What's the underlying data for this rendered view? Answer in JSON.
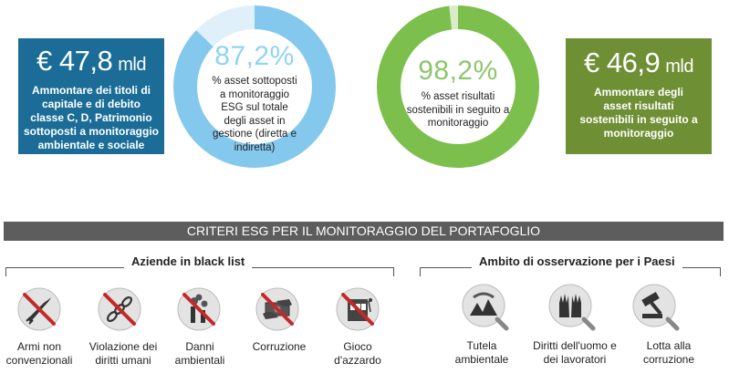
{
  "left_box": {
    "amount": "€ 47,8",
    "unit": "mld",
    "description": "Ammontare dei titoli di capitale e di debito classe C, D, Patrimonio sottoposti a monitoraggio ambientale e sociale",
    "color": "#1b6d97"
  },
  "left_donut": {
    "percentage": "87,2%",
    "value": 87.2,
    "text": "% asset sottoposti a monitoraggio ESG sul totale degli asset in gestione (diretta e indiretta)",
    "main_color": "#85c8ee",
    "rest_color": "#dff0fa"
  },
  "right_donut": {
    "percentage": "98,2%",
    "value": 98.2,
    "text": "% asset risultati sostenibili in seguito a monitoraggio",
    "main_color": "#7cbf4d",
    "rest_color": "#d9ecc7"
  },
  "right_box": {
    "amount": "€ 46,9",
    "unit": "mld",
    "description": "Ammontare degli asset risultati sostenibili in seguito a monitoraggio",
    "color": "#6f8f35"
  },
  "banner": {
    "title": "CRITERI ESG PER IL MONITORAGGIO DEL PORTAFOGLIO"
  },
  "blacklist": {
    "title": "Aziende in black list",
    "items": [
      {
        "label": "Armi non convenzionali",
        "icon": "weapon-icon"
      },
      {
        "label": "Violazione dei diritti umani",
        "icon": "chain-icon"
      },
      {
        "label": "Danni ambientali",
        "icon": "factory-icon"
      },
      {
        "label": "Corruzione",
        "icon": "bribe-icon"
      },
      {
        "label": "Gioco d'azzardo",
        "icon": "slot-machine-icon"
      }
    ]
  },
  "countries": {
    "title": "Ambito di osservazione per i Paesi",
    "items": [
      {
        "label": "Tutela ambientale",
        "icon": "environment-icon"
      },
      {
        "label": "Diritti dell'uomo e dei lavoratori",
        "icon": "raised-hands-icon"
      },
      {
        "label": "Lotta alla corruzione",
        "icon": "gavel-icon"
      }
    ]
  }
}
